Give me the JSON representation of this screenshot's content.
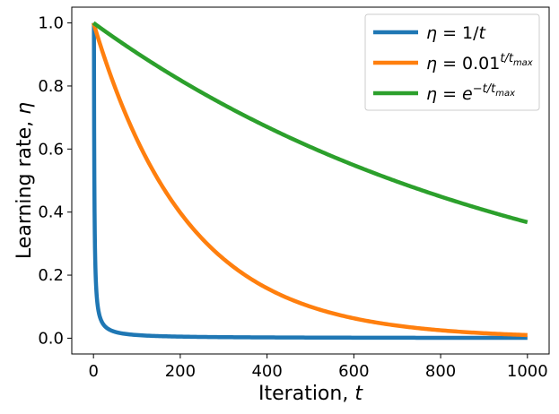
{
  "chart_data": {
    "type": "line",
    "xlabel": {
      "text": "Iteration, ",
      "var": "t"
    },
    "ylabel": {
      "text": "Learning rate, ",
      "var": "η"
    },
    "xlim": [
      -50,
      1050
    ],
    "ylim": [
      -0.05,
      1.05
    ],
    "xticks": [
      0,
      200,
      400,
      600,
      800,
      1000
    ],
    "xtick_labels": [
      "0",
      "200",
      "400",
      "600",
      "800",
      "1000"
    ],
    "yticks": [
      0.0,
      0.2,
      0.4,
      0.6,
      0.8,
      1.0
    ],
    "ytick_labels": [
      "0.0",
      "0.2",
      "0.4",
      "0.6",
      "0.8",
      "1.0"
    ],
    "grid": false,
    "legend_position": "top-right",
    "t_max": 1000,
    "series": [
      {
        "name": "η = 1/t",
        "formula": "1/t",
        "color": "#1f77b4",
        "x": [
          1,
          2,
          3,
          5,
          10,
          20,
          50,
          100,
          200,
          500,
          1000
        ],
        "y": [
          1.0,
          0.5,
          0.333,
          0.2,
          0.1,
          0.05,
          0.02,
          0.01,
          0.005,
          0.002,
          0.001
        ]
      },
      {
        "name": "η = 0.01^(t/t_max)",
        "formula": "0.01^(t/tmax)",
        "color": "#ff7f0e",
        "x": [
          0,
          100,
          200,
          300,
          400,
          500,
          600,
          700,
          800,
          900,
          1000
        ],
        "y": [
          1.0,
          0.631,
          0.398,
          0.251,
          0.158,
          0.1,
          0.063,
          0.04,
          0.025,
          0.016,
          0.01
        ]
      },
      {
        "name": "η = e^(-t/t_max)",
        "formula": "exp(-t/tmax)",
        "color": "#2ca02c",
        "x": [
          0,
          100,
          200,
          300,
          400,
          500,
          600,
          700,
          800,
          900,
          1000
        ],
        "y": [
          1.0,
          0.905,
          0.819,
          0.741,
          0.67,
          0.607,
          0.549,
          0.497,
          0.449,
          0.407,
          0.368
        ]
      }
    ],
    "legend": [
      {
        "lhs": "η",
        "op": " = ",
        "base": "1/",
        "var": "t",
        "sup": "",
        "color": "#1f77b4"
      },
      {
        "lhs": "η",
        "op": " = ",
        "base": "0.01",
        "var": "",
        "sup": "t/t",
        "sub": "max",
        "color": "#ff7f0e"
      },
      {
        "lhs": "η",
        "op": " = ",
        "base": "e",
        "var": "",
        "sup": "−t/t",
        "sub": "max",
        "color": "#2ca02c"
      }
    ]
  }
}
